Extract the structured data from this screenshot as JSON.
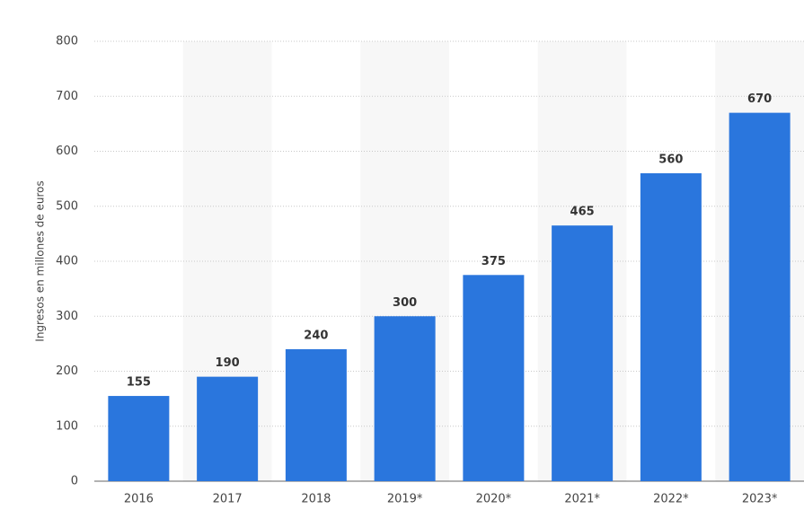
{
  "chart_data": {
    "type": "bar",
    "y_label": "Ingresos en millones de euros",
    "categories": [
      "2016",
      "2017",
      "2018",
      "2019*",
      "2020*",
      "2021*",
      "2022*",
      "2023*"
    ],
    "values": [
      155,
      190,
      240,
      300,
      375,
      465,
      560,
      670
    ],
    "color": "#2a76dd",
    "ylim": [
      0,
      800
    ],
    "yticks": [
      0,
      100,
      200,
      300,
      400,
      500,
      600,
      700,
      800
    ],
    "grid": true
  }
}
